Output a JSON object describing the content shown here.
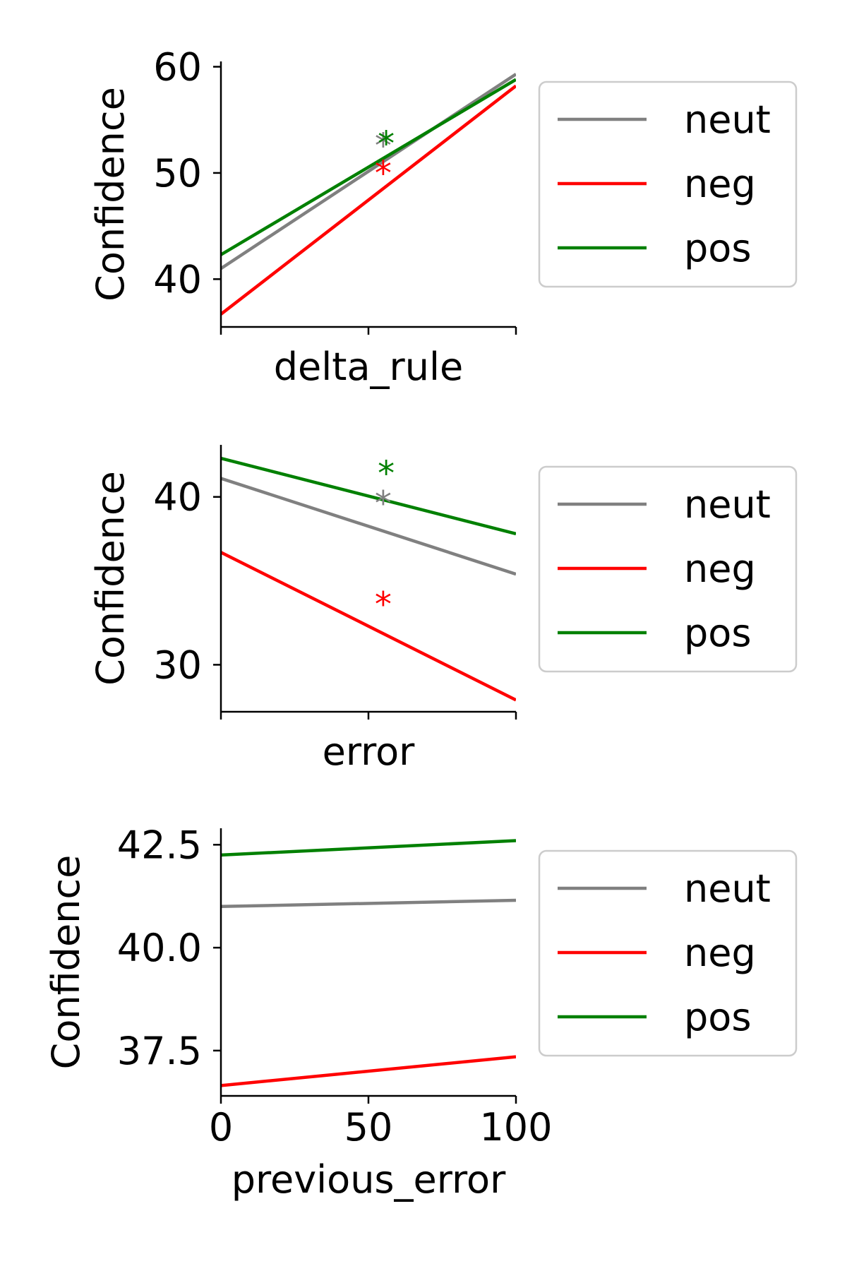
{
  "chart_data": [
    {
      "type": "line",
      "xlabel": "delta_rule",
      "ylabel": "Confidence",
      "xlim": [
        0,
        100
      ],
      "ylim": [
        35.5,
        60.5
      ],
      "xticks": [
        0,
        50,
        100
      ],
      "show_xticklabels": false,
      "yticks": [
        40,
        50,
        60
      ],
      "yticklabels": [
        "40",
        "50",
        "60"
      ],
      "grid": false,
      "legend_position": "right",
      "series": [
        {
          "name": "neut",
          "color": "#808080",
          "x": [
            0,
            100
          ],
          "values": [
            41.0,
            59.3
          ]
        },
        {
          "name": "neg",
          "color": "#ff0000",
          "x": [
            0,
            100
          ],
          "values": [
            36.7,
            58.2
          ]
        },
        {
          "name": "pos",
          "color": "#008000",
          "x": [
            0,
            100
          ],
          "values": [
            42.3,
            58.8
          ]
        }
      ],
      "annotations": [
        {
          "text": "*",
          "color": "#808080",
          "x": 55,
          "y": 53.2
        },
        {
          "text": "*",
          "color": "#ff0000",
          "x": 55,
          "y": 50.6
        },
        {
          "text": "*",
          "color": "#008000",
          "x": 56,
          "y": 53.4
        }
      ]
    },
    {
      "type": "line",
      "xlabel": "error",
      "ylabel": "Confidence",
      "xlim": [
        0,
        100
      ],
      "ylim": [
        27.2,
        43.1
      ],
      "xticks": [
        0,
        50,
        100
      ],
      "show_xticklabels": false,
      "yticks": [
        30,
        40
      ],
      "yticklabels": [
        "30",
        "40"
      ],
      "grid": false,
      "legend_position": "right",
      "series": [
        {
          "name": "neut",
          "color": "#808080",
          "x": [
            0,
            100
          ],
          "values": [
            41.1,
            35.4
          ]
        },
        {
          "name": "neg",
          "color": "#ff0000",
          "x": [
            0,
            100
          ],
          "values": [
            36.7,
            27.9
          ]
        },
        {
          "name": "pos",
          "color": "#008000",
          "x": [
            0,
            100
          ],
          "values": [
            42.3,
            37.8
          ]
        }
      ],
      "annotations": [
        {
          "text": "*",
          "color": "#808080",
          "x": 55,
          "y": 40.0
        },
        {
          "text": "*",
          "color": "#ff0000",
          "x": 55,
          "y": 34.0
        },
        {
          "text": "*",
          "color": "#008000",
          "x": 56,
          "y": 41.8
        }
      ]
    },
    {
      "type": "line",
      "xlabel": "previous_error",
      "ylabel": "Confidence",
      "xlim": [
        0,
        100
      ],
      "ylim": [
        36.4,
        42.9
      ],
      "xticks": [
        0,
        50,
        100
      ],
      "xticklabels": [
        "0",
        "50",
        "100"
      ],
      "show_xticklabels": true,
      "yticks": [
        37.5,
        40.0,
        42.5
      ],
      "yticklabels": [
        "37.5",
        "40.0",
        "42.5"
      ],
      "grid": false,
      "legend_position": "right",
      "series": [
        {
          "name": "neut",
          "color": "#808080",
          "x": [
            0,
            100
          ],
          "values": [
            41.0,
            41.15
          ]
        },
        {
          "name": "neg",
          "color": "#ff0000",
          "x": [
            0,
            100
          ],
          "values": [
            36.65,
            37.35
          ]
        },
        {
          "name": "pos",
          "color": "#008000",
          "x": [
            0,
            100
          ],
          "values": [
            42.25,
            42.6
          ]
        }
      ],
      "annotations": []
    }
  ]
}
